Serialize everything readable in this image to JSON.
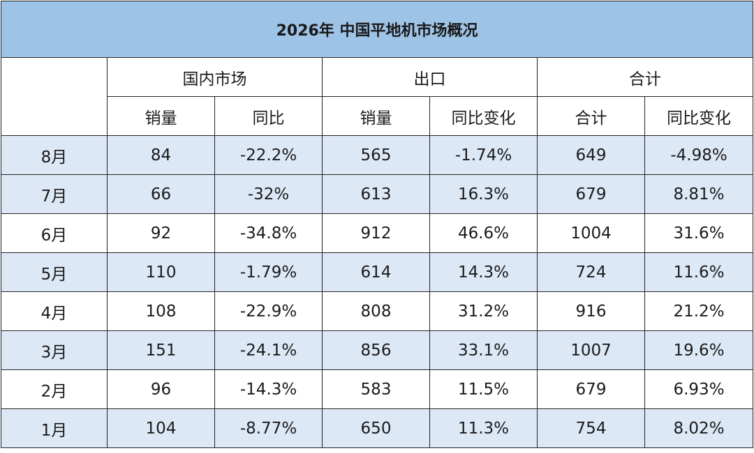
{
  "chart_data": {
    "type": "table",
    "title": "2026年 中国平地机市场概况",
    "column_groups": [
      {
        "label": "国内市场",
        "columns": [
          "销量",
          "同比"
        ]
      },
      {
        "label": "出口",
        "columns": [
          "销量",
          "同比变化"
        ]
      },
      {
        "label": "合计",
        "columns": [
          "合计",
          "同比变化"
        ]
      }
    ],
    "rows": [
      {
        "month": "8月",
        "domestic_sales": "84",
        "domestic_yoy": "-22.2%",
        "export_sales": "565",
        "export_yoy": "-1.74%",
        "total": "649",
        "total_yoy": "-4.98%"
      },
      {
        "month": "7月",
        "domestic_sales": "66",
        "domestic_yoy": "-32%",
        "export_sales": "613",
        "export_yoy": "16.3%",
        "total": "679",
        "total_yoy": "8.81%"
      },
      {
        "month": "6月",
        "domestic_sales": "92",
        "domestic_yoy": "-34.8%",
        "export_sales": "912",
        "export_yoy": "46.6%",
        "total": "1004",
        "total_yoy": "31.6%"
      },
      {
        "month": "5月",
        "domestic_sales": "110",
        "domestic_yoy": "-1.79%",
        "export_sales": "614",
        "export_yoy": "14.3%",
        "total": "724",
        "total_yoy": "11.6%"
      },
      {
        "month": "4月",
        "domestic_sales": "108",
        "domestic_yoy": "-22.9%",
        "export_sales": "808",
        "export_yoy": "31.2%",
        "total": "916",
        "total_yoy": "21.2%"
      },
      {
        "month": "3月",
        "domestic_sales": "151",
        "domestic_yoy": "-24.1%",
        "export_sales": "856",
        "export_yoy": "33.1%",
        "total": "1007",
        "total_yoy": "19.6%"
      },
      {
        "month": "2月",
        "domestic_sales": "96",
        "domestic_yoy": "-14.3%",
        "export_sales": "583",
        "export_yoy": "11.5%",
        "total": "679",
        "total_yoy": "6.93%"
      },
      {
        "month": "1月",
        "domestic_sales": "104",
        "domestic_yoy": "-8.77%",
        "export_sales": "650",
        "export_yoy": "11.3%",
        "total": "754",
        "total_yoy": "8.02%"
      }
    ],
    "colors": {
      "title_background": "#9dc3e6",
      "alternate_row_background": "#dde8f6",
      "border": "#222222"
    }
  }
}
